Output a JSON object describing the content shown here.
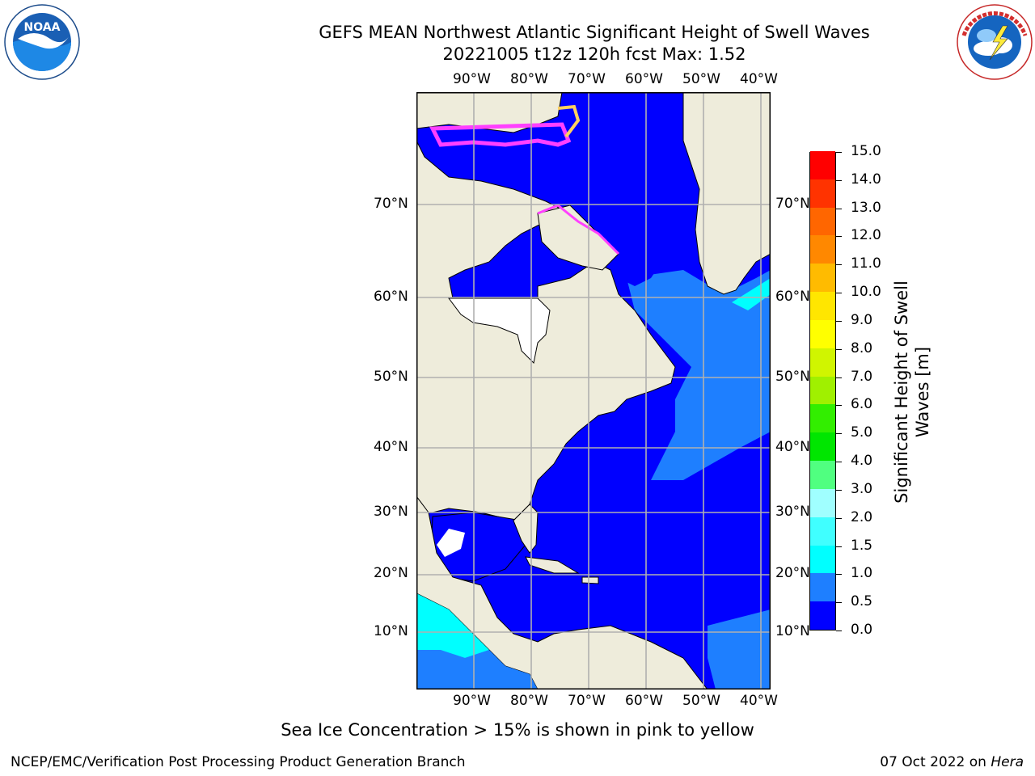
{
  "header": {
    "title_line1": "GEFS MEAN Northwest Atlantic Significant Height of Swell Waves",
    "title_line2": "20221005 t12z 120h fcst   Max: 1.52"
  },
  "logos": {
    "left": "NOAA",
    "left_ring_text": "NATIONAL OCEANIC AND ATMOSPHERIC ADMINISTRATION · U.S. DEPARTMENT OF COMMERCE",
    "right_ring_text": "NATIONAL WEATHER SERVICE"
  },
  "map": {
    "lon_labels": [
      "90°W",
      "80°W",
      "70°W",
      "60°W",
      "50°W",
      "40°W"
    ],
    "lat_labels": [
      "70°N",
      "60°N",
      "50°N",
      "40°N",
      "30°N",
      "20°N",
      "10°N"
    ],
    "colors": {
      "land": "#eeecdb",
      "ocean_low": "#0000ff",
      "ocean_mid": "#1e7fff",
      "ocean_high": "#00ffff",
      "nodata": "#ffffff",
      "ice_pink": "#ff40ff",
      "ice_yellow": "#ffd060",
      "grid": "#b0b0b0"
    }
  },
  "colorbar": {
    "title": "Significant Height of Swell Waves [m]",
    "tick_labels": [
      "15.0",
      "14.0",
      "13.0",
      "12.0",
      "11.0",
      "10.0",
      "9.0",
      "8.0",
      "7.0",
      "6.0",
      "5.0",
      "4.0",
      "3.0",
      "2.0",
      "1.5",
      "1.0",
      "0.5",
      "0.0"
    ],
    "levels": [
      0.0,
      0.5,
      1.0,
      1.5,
      2.0,
      3.0,
      4.0,
      5.0,
      6.0,
      7.0,
      8.0,
      9.0,
      10.0,
      11.0,
      12.0,
      13.0,
      14.0,
      15.0
    ],
    "colors": [
      "#0000ff",
      "#1e7fff",
      "#00ffff",
      "#40ffff",
      "#a0ffff",
      "#50ff80",
      "#00e600",
      "#32ee00",
      "#a0f000",
      "#d0f500",
      "#ffff00",
      "#ffe600",
      "#ffbb00",
      "#ff8800",
      "#ff6600",
      "#ff3300",
      "#ff0000"
    ]
  },
  "footer": {
    "note": "Sea Ice Concentration > 15% is shown in pink to yellow",
    "left": "NCEP/EMC/Verification Post Processing Product Generation Branch",
    "date": "07 Oct 2022 on ",
    "host": "Hera"
  }
}
